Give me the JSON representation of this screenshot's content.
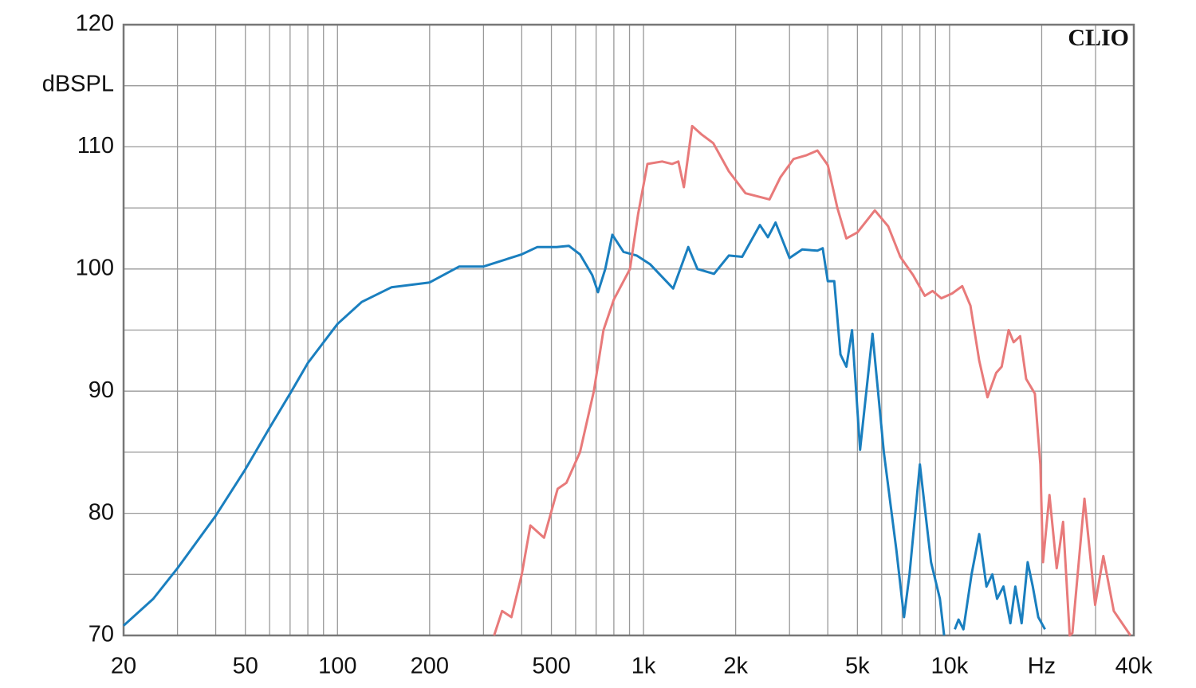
{
  "chart_data": {
    "type": "line",
    "y_label": "dBSPL",
    "watermark": "CLIO",
    "log_x": true,
    "grid": true,
    "xlim": [
      20,
      40000
    ],
    "ylim": [
      70,
      120
    ],
    "xticks": [
      20,
      50,
      100,
      200,
      500,
      {
        "value": 1000,
        "label": "1k"
      },
      {
        "value": 2000,
        "label": "2k"
      },
      {
        "value": 5000,
        "label": "5k"
      },
      {
        "value": 10000,
        "label": "10k"
      },
      {
        "value": 20000,
        "label": "Hz"
      },
      {
        "value": 40000,
        "label": "40k"
      }
    ],
    "yticks": [
      70,
      80,
      90,
      100,
      110,
      120
    ],
    "x_minor_grid": [
      30,
      40,
      60,
      70,
      80,
      90,
      300,
      400,
      600,
      700,
      800,
      900,
      3000,
      4000,
      6000,
      7000,
      8000,
      9000,
      30000
    ],
    "y_minor_grid": [
      75,
      85,
      95,
      105,
      115
    ],
    "series": [
      {
        "color": "#1a7fbf",
        "x": [
          20,
          25,
          30,
          40,
          50,
          60,
          70,
          80,
          100,
          120,
          150,
          200,
          250,
          300,
          400,
          450,
          520,
          570,
          620,
          680,
          710,
          750,
          791,
          860,
          950,
          1050,
          1250,
          1400,
          1500,
          1600,
          1700,
          1900,
          2100,
          2400,
          2550,
          2700,
          3000,
          3300,
          3700,
          3850,
          4000,
          4200,
          4400,
          4600,
          4800,
          5100,
          5600,
          6100,
          6700,
          7100,
          7400,
          8000,
          8700,
          9300,
          9600,
          9900,
          10400,
          10700,
          11100,
          11800,
          12500,
          13200,
          13800,
          14300,
          15000,
          15800,
          16400,
          17200,
          18000,
          18700,
          19500,
          20500,
          21200
        ],
        "values": [
          70.8,
          73,
          75.5,
          79.8,
          83.6,
          87,
          89.8,
          92.3,
          95.5,
          97.3,
          98.5,
          98.9,
          100.2,
          100.2,
          101.2,
          101.8,
          101.8,
          101.9,
          101.2,
          99.5,
          98.1,
          100,
          102.8,
          101.4,
          101.1,
          100.4,
          98.4,
          101.8,
          100,
          99.8,
          99.6,
          101.1,
          101,
          103.6,
          102.6,
          103.8,
          100.9,
          101.6,
          101.5,
          101.7,
          99,
          99,
          93,
          92,
          95,
          85.2,
          94.7,
          85,
          77,
          71.5,
          75,
          84,
          76,
          73,
          70,
          null,
          70.5,
          71.3,
          70.5,
          75,
          78.3,
          74,
          75,
          73,
          74,
          71,
          74,
          71,
          76,
          74,
          71.5,
          70.5,
          null
        ]
      },
      {
        "color": "#e87a7a",
        "x": [
          325,
          345,
          370,
          400,
          427,
          473,
          524,
          560,
          620,
          688,
          740,
          800,
          903,
          960,
          1030,
          1150,
          1240,
          1300,
          1355,
          1442,
          1550,
          1690,
          1900,
          2154,
          2580,
          2800,
          3090,
          3400,
          3700,
          4000,
          4300,
          4600,
          5000,
          5700,
          6300,
          6900,
          7600,
          8300,
          8800,
          9400,
          10200,
          11000,
          11700,
          12500,
          13300,
          14200,
          14800,
          15600,
          16200,
          17000,
          17800,
          19000,
          19800,
          20200,
          21200,
          22400,
          23500,
          24700,
          25200,
          27600,
          29900,
          31800,
          34400,
          39000
        ],
        "values": [
          70,
          72,
          71.5,
          75,
          79,
          78,
          82,
          82.5,
          85,
          90,
          95,
          97.5,
          100,
          104.5,
          108.6,
          108.8,
          108.6,
          108.8,
          106.7,
          111.7,
          111,
          110.3,
          108,
          106.2,
          105.7,
          107.5,
          109,
          109.3,
          109.7,
          108.5,
          105,
          102.5,
          103,
          104.8,
          103.5,
          101,
          99.5,
          97.8,
          98.2,
          97.6,
          98,
          98.6,
          97,
          92.5,
          89.5,
          91.5,
          92,
          95,
          94,
          94.5,
          91,
          89.8,
          84,
          76,
          81.5,
          75.5,
          79.3,
          70,
          70.2,
          81.2,
          72.5,
          76.5,
          72,
          70
        ]
      }
    ]
  }
}
